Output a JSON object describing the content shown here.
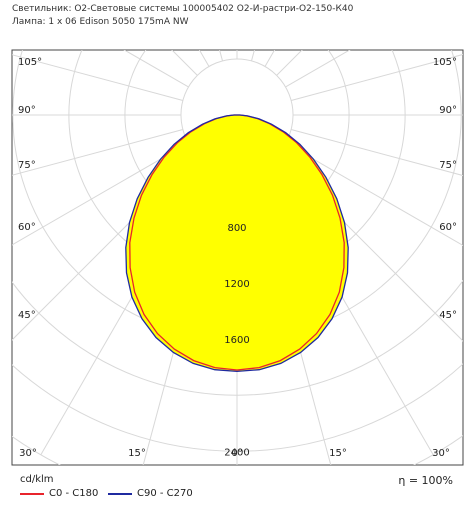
{
  "header": {
    "line1": "Светильник: О2-Световые системы 100005402 О2-И-растри-О2-150-К40",
    "line2": "Лампа: 1 x 06 Edison 5050 175mA NW"
  },
  "footer": {
    "unit": "cd/klm",
    "efficiency": "η = 100%"
  },
  "colors": {
    "c0_c180": "#e8242c",
    "c90_c270": "#1f2aa0",
    "fill": "#ffff00",
    "grid": "#d8d8d8",
    "frame": "#444444"
  },
  "chart_data": {
    "type": "polar",
    "title": "",
    "radial_max": 2800,
    "radial_labels": [
      {
        "value": 800,
        "text": "800"
      },
      {
        "value": 1200,
        "text": "1200"
      },
      {
        "value": 1600,
        "text": "1600"
      },
      {
        "value": 2400,
        "text": "2400"
      }
    ],
    "angle_labels_left": [
      "105°",
      "90°",
      "75°",
      "60°",
      "45°"
    ],
    "angle_labels_right": [
      "105°",
      "90°",
      "75°",
      "60°",
      "45°"
    ],
    "angle_labels_bottom": [
      "30°",
      "15°",
      "0°",
      "15°",
      "30°"
    ],
    "legend": [
      "C0 - C180",
      "C90 - C270"
    ],
    "series": [
      {
        "name": "C0 - C180",
        "angles": [
          0,
          5,
          10,
          15,
          20,
          25,
          30,
          35,
          40,
          45,
          50,
          55,
          60,
          65,
          70,
          75,
          80,
          85,
          90
        ],
        "values": [
          1820,
          1810,
          1780,
          1730,
          1660,
          1570,
          1460,
          1330,
          1190,
          1040,
          890,
          740,
          600,
          470,
          350,
          240,
          150,
          70,
          20
        ]
      },
      {
        "name": "C90 - C270",
        "angles": [
          0,
          5,
          10,
          15,
          20,
          25,
          30,
          35,
          40,
          45,
          50,
          55,
          60,
          65,
          70,
          75,
          80,
          85,
          90
        ],
        "values": [
          1830,
          1825,
          1800,
          1755,
          1690,
          1605,
          1500,
          1375,
          1235,
          1085,
          930,
          775,
          630,
          495,
          370,
          255,
          160,
          75,
          22
        ]
      }
    ]
  }
}
